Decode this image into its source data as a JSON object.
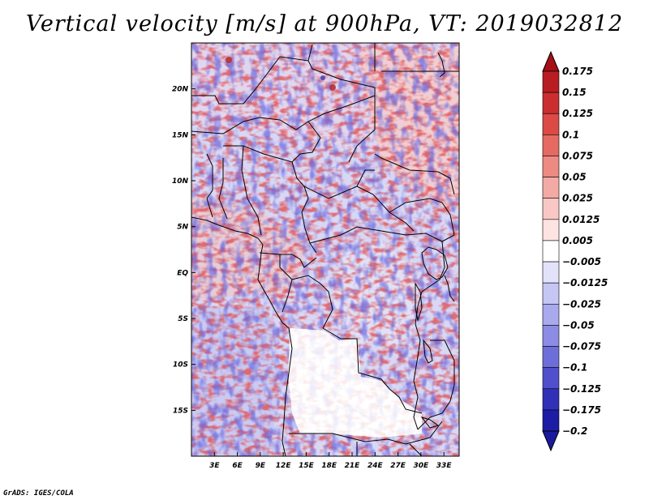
{
  "title": "Vertical velocity [m/s] at 900hPa, VT: 2019032812",
  "credit": "GrADS: IGES/COLA",
  "map": {
    "lon_range": [
      0,
      35
    ],
    "lat_range": [
      -20,
      25
    ],
    "lon_ticks": [
      {
        "value": 3,
        "label": "3E"
      },
      {
        "value": 6,
        "label": "6E"
      },
      {
        "value": 9,
        "label": "9E"
      },
      {
        "value": 12,
        "label": "12E"
      },
      {
        "value": 15,
        "label": "15E"
      },
      {
        "value": 18,
        "label": "18E"
      },
      {
        "value": 21,
        "label": "21E"
      },
      {
        "value": 24,
        "label": "24E"
      },
      {
        "value": 27,
        "label": "27E"
      },
      {
        "value": 30,
        "label": "30E"
      },
      {
        "value": 33,
        "label": "33E"
      }
    ],
    "lat_ticks": [
      {
        "value": 20,
        "label": "20N"
      },
      {
        "value": 15,
        "label": "15N"
      },
      {
        "value": 10,
        "label": "10N"
      },
      {
        "value": 5,
        "label": "5N"
      },
      {
        "value": 0,
        "label": "EQ"
      },
      {
        "value": -5,
        "label": "5S"
      },
      {
        "value": -10,
        "label": "10S"
      },
      {
        "value": -15,
        "label": "15S"
      }
    ]
  },
  "colorbar": {
    "levels": [
      {
        "label": "0.175",
        "color": "#a50f15"
      },
      {
        "label": "0.15",
        "color": "#b81d22"
      },
      {
        "label": "0.125",
        "color": "#cb2e2e"
      },
      {
        "label": "0.1",
        "color": "#dc4a45"
      },
      {
        "label": "0.075",
        "color": "#e56a62"
      },
      {
        "label": "0.05",
        "color": "#ed8a82"
      },
      {
        "label": "0.025",
        "color": "#f4aaa4"
      },
      {
        "label": "0.0125",
        "color": "#f9c8c4"
      },
      {
        "label": "0.005",
        "color": "#fde4e2"
      },
      {
        "label": "-0.005",
        "color": "#ffffff"
      },
      {
        "label": "-0.0125",
        "color": "#e2e2fb"
      },
      {
        "label": "-0.025",
        "color": "#c6c6f5"
      },
      {
        "label": "-0.05",
        "color": "#a9a9ee"
      },
      {
        "label": "-0.075",
        "color": "#8c8ce5"
      },
      {
        "label": "-0.1",
        "color": "#6e6edb"
      },
      {
        "label": "-0.125",
        "color": "#5050cc"
      },
      {
        "label": "-0.175",
        "color": "#3131b8"
      },
      {
        "label": "-0.2",
        "color": "#1c1ca5"
      }
    ],
    "top_color": "#a50f15",
    "bottom_color": "#1a1a9e"
  }
}
